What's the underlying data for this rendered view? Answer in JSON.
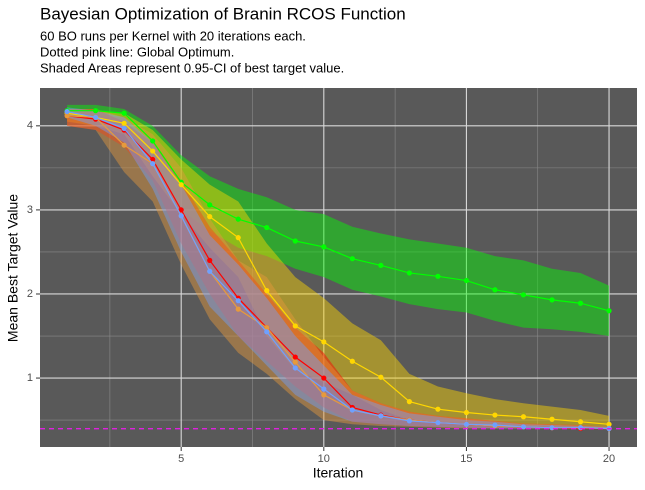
{
  "chart_data": {
    "type": "line",
    "title": "Bayesian Optimization of Branin RCOS Function",
    "subtitle": [
      "60 BO runs per Kernel with 20 iterations each.",
      "Dotted pink line: Global Optimum.",
      "Shaded Areas represent 0.95-CI of best target value."
    ],
    "x_label": "Iteration",
    "y_label": "Mean Best Target Value",
    "x": [
      1,
      2,
      3,
      4,
      5,
      6,
      7,
      8,
      9,
      10,
      11,
      12,
      13,
      14,
      15,
      16,
      17,
      18,
      19,
      20
    ],
    "xlim": [
      0.05,
      20.98
    ],
    "xticks": [
      5,
      10,
      15,
      20
    ],
    "minor_xticks": [
      2.5,
      7.5,
      12.5,
      17.5
    ],
    "ylim": [
      0.18,
      4.45
    ],
    "yticks": [
      1,
      2,
      3,
      4
    ],
    "minor_yticks": [
      0.5,
      1.5,
      2.5,
      3.5
    ],
    "grid": true,
    "optimum": {
      "value": 0.398,
      "color": "#e020e0"
    },
    "series": [
      {
        "color": "#00ff00",
        "values": [
          4.18,
          4.18,
          4.15,
          3.82,
          3.33,
          3.06,
          2.89,
          2.79,
          2.63,
          2.56,
          2.42,
          2.34,
          2.25,
          2.21,
          2.16,
          2.05,
          1.99,
          1.93,
          1.89,
          1.8
        ],
        "upper": [
          4.25,
          4.25,
          4.2,
          4.0,
          3.65,
          3.4,
          3.25,
          3.15,
          3.0,
          2.95,
          2.8,
          2.72,
          2.65,
          2.6,
          2.55,
          2.45,
          2.4,
          2.3,
          2.25,
          2.1
        ],
        "lower": [
          4.1,
          4.1,
          4.1,
          3.6,
          3.0,
          2.75,
          2.55,
          2.45,
          2.3,
          2.2,
          2.05,
          1.97,
          1.88,
          1.82,
          1.78,
          1.68,
          1.6,
          1.58,
          1.55,
          1.5
        ]
      },
      {
        "color": "#ffd700",
        "values": [
          4.15,
          4.1,
          4.03,
          3.7,
          3.3,
          2.92,
          2.67,
          2.04,
          1.62,
          1.43,
          1.2,
          1.01,
          0.72,
          0.63,
          0.59,
          0.56,
          0.54,
          0.51,
          0.48,
          0.45
        ],
        "upper": [
          4.2,
          4.18,
          4.15,
          3.95,
          3.6,
          3.3,
          3.1,
          2.6,
          2.2,
          1.95,
          1.65,
          1.45,
          1.05,
          0.9,
          0.82,
          0.75,
          0.7,
          0.66,
          0.62,
          0.55
        ],
        "lower": [
          4.05,
          4.0,
          3.9,
          3.4,
          2.95,
          2.55,
          2.2,
          1.5,
          1.1,
          0.95,
          0.8,
          0.62,
          0.5,
          0.47,
          0.45,
          0.44,
          0.43,
          0.42,
          0.41,
          0.4
        ]
      },
      {
        "color": "#ff0000",
        "values": [
          4.12,
          4.08,
          3.95,
          3.6,
          3.0,
          2.4,
          1.95,
          1.6,
          1.25,
          1.0,
          0.65,
          0.56,
          0.5,
          0.47,
          0.45,
          0.43,
          0.42,
          0.41,
          0.4,
          0.4
        ],
        "upper": [
          4.2,
          4.2,
          4.05,
          3.8,
          3.35,
          2.8,
          2.4,
          2.0,
          1.6,
          1.3,
          0.85,
          0.7,
          0.6,
          0.55,
          0.52,
          0.49,
          0.46,
          0.45,
          0.44,
          0.42
        ],
        "lower": [
          4.0,
          3.95,
          3.75,
          3.35,
          2.6,
          2.0,
          1.5,
          1.2,
          0.9,
          0.65,
          0.48,
          0.45,
          0.43,
          0.42,
          0.41,
          0.4,
          0.4,
          0.4,
          0.4,
          0.39
        ]
      },
      {
        "color": "#e69a3c",
        "values": [
          4.12,
          4.1,
          3.77,
          3.55,
          2.93,
          2.27,
          1.82,
          1.6,
          1.19,
          0.8,
          0.62,
          0.55,
          0.5,
          0.47,
          0.45,
          0.43,
          0.42,
          0.41,
          0.41,
          0.4
        ],
        "upper": [
          4.2,
          4.2,
          4.1,
          3.9,
          3.5,
          2.9,
          2.4,
          2.2,
          1.7,
          1.25,
          0.85,
          0.7,
          0.6,
          0.55,
          0.52,
          0.49,
          0.46,
          0.45,
          0.44,
          0.42
        ],
        "lower": [
          4.0,
          3.95,
          3.45,
          3.1,
          2.35,
          1.7,
          1.3,
          1.05,
          0.75,
          0.5,
          0.45,
          0.43,
          0.42,
          0.41,
          0.4,
          0.4,
          0.4,
          0.4,
          0.4,
          0.39
        ]
      },
      {
        "color": "#6fa0ff",
        "values": [
          4.17,
          4.1,
          3.97,
          3.55,
          2.93,
          2.27,
          1.92,
          1.55,
          1.12,
          0.87,
          0.62,
          0.55,
          0.49,
          0.47,
          0.45,
          0.44,
          0.42,
          0.41,
          0.41,
          0.4
        ],
        "upper": [
          4.22,
          4.18,
          4.1,
          3.8,
          3.3,
          2.7,
          2.35,
          1.95,
          1.5,
          1.15,
          0.8,
          0.68,
          0.58,
          0.54,
          0.5,
          0.48,
          0.45,
          0.44,
          0.43,
          0.42
        ],
        "lower": [
          4.1,
          4.0,
          3.8,
          3.25,
          2.5,
          1.85,
          1.5,
          1.15,
          0.8,
          0.6,
          0.48,
          0.45,
          0.43,
          0.42,
          0.41,
          0.4,
          0.4,
          0.4,
          0.4,
          0.39
        ]
      }
    ]
  }
}
